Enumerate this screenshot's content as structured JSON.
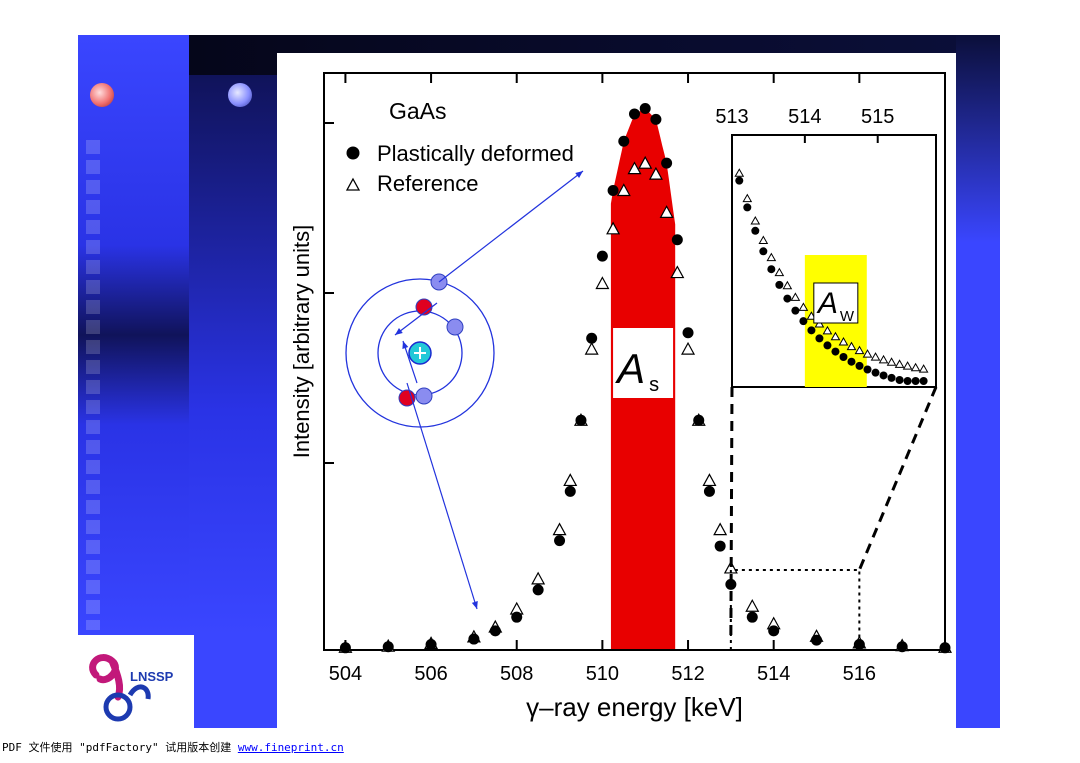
{
  "chart_data": {
    "type": "scatter",
    "title": "",
    "annotation_title": "GaAs",
    "xlabel": "γ–ray energy [keV]",
    "ylabel": "Intensity [arbitrary units]",
    "xlim": [
      503.5,
      518
    ],
    "ylim": [
      0,
      1.0
    ],
    "x_ticks": [
      504,
      506,
      508,
      510,
      512,
      514,
      516
    ],
    "legend_placement": "top-left",
    "series": [
      {
        "name": "Plastically deformed",
        "marker": "filled-circle",
        "x": [
          504,
          505,
          506,
          507,
          507.5,
          508,
          508.5,
          509,
          509.25,
          509.5,
          509.75,
          510,
          510.25,
          510.5,
          510.75,
          511,
          511.25,
          511.5,
          511.75,
          512,
          512.25,
          512.5,
          512.75,
          513,
          513.5,
          514,
          515,
          516,
          517,
          518
        ],
        "y": [
          0.004,
          0.006,
          0.01,
          0.02,
          0.035,
          0.06,
          0.11,
          0.2,
          0.29,
          0.42,
          0.57,
          0.72,
          0.84,
          0.93,
          0.98,
          0.99,
          0.97,
          0.89,
          0.75,
          0.58,
          0.42,
          0.29,
          0.19,
          0.12,
          0.06,
          0.035,
          0.018,
          0.01,
          0.006,
          0.004
        ]
      },
      {
        "name": "Reference",
        "marker": "open-triangle",
        "x": [
          504,
          505,
          506,
          507,
          507.5,
          508,
          508.5,
          509,
          509.25,
          509.5,
          509.75,
          510,
          510.25,
          510.5,
          510.75,
          511,
          511.25,
          511.5,
          511.75,
          512,
          512.25,
          512.5,
          512.75,
          513,
          513.5,
          514,
          515,
          516,
          517,
          518
        ],
        "y": [
          0.005,
          0.007,
          0.012,
          0.024,
          0.042,
          0.075,
          0.13,
          0.22,
          0.31,
          0.42,
          0.55,
          0.67,
          0.77,
          0.84,
          0.88,
          0.89,
          0.87,
          0.8,
          0.69,
          0.55,
          0.42,
          0.31,
          0.22,
          0.15,
          0.08,
          0.048,
          0.025,
          0.013,
          0.008,
          0.005
        ]
      }
    ],
    "shaded_regions": [
      {
        "label": "A",
        "subscript": "s",
        "x_range": [
          510.2,
          511.7
        ],
        "color": "#e80000"
      },
      {
        "label": "A",
        "subscript": "W",
        "x_range": [
          514.0,
          514.85
        ],
        "color": "#ffff00"
      }
    ],
    "inset": {
      "x_ticks": [
        513,
        514,
        515
      ],
      "xlim": [
        513,
        515.8
      ],
      "source_range": [
        513,
        516
      ]
    }
  },
  "footer": {
    "text": "PDF 文件使用 \"pdfFactory\" 试用版本创建 ",
    "link": "www.fineprint.cn"
  },
  "logo": {
    "text": "LNSSP"
  }
}
